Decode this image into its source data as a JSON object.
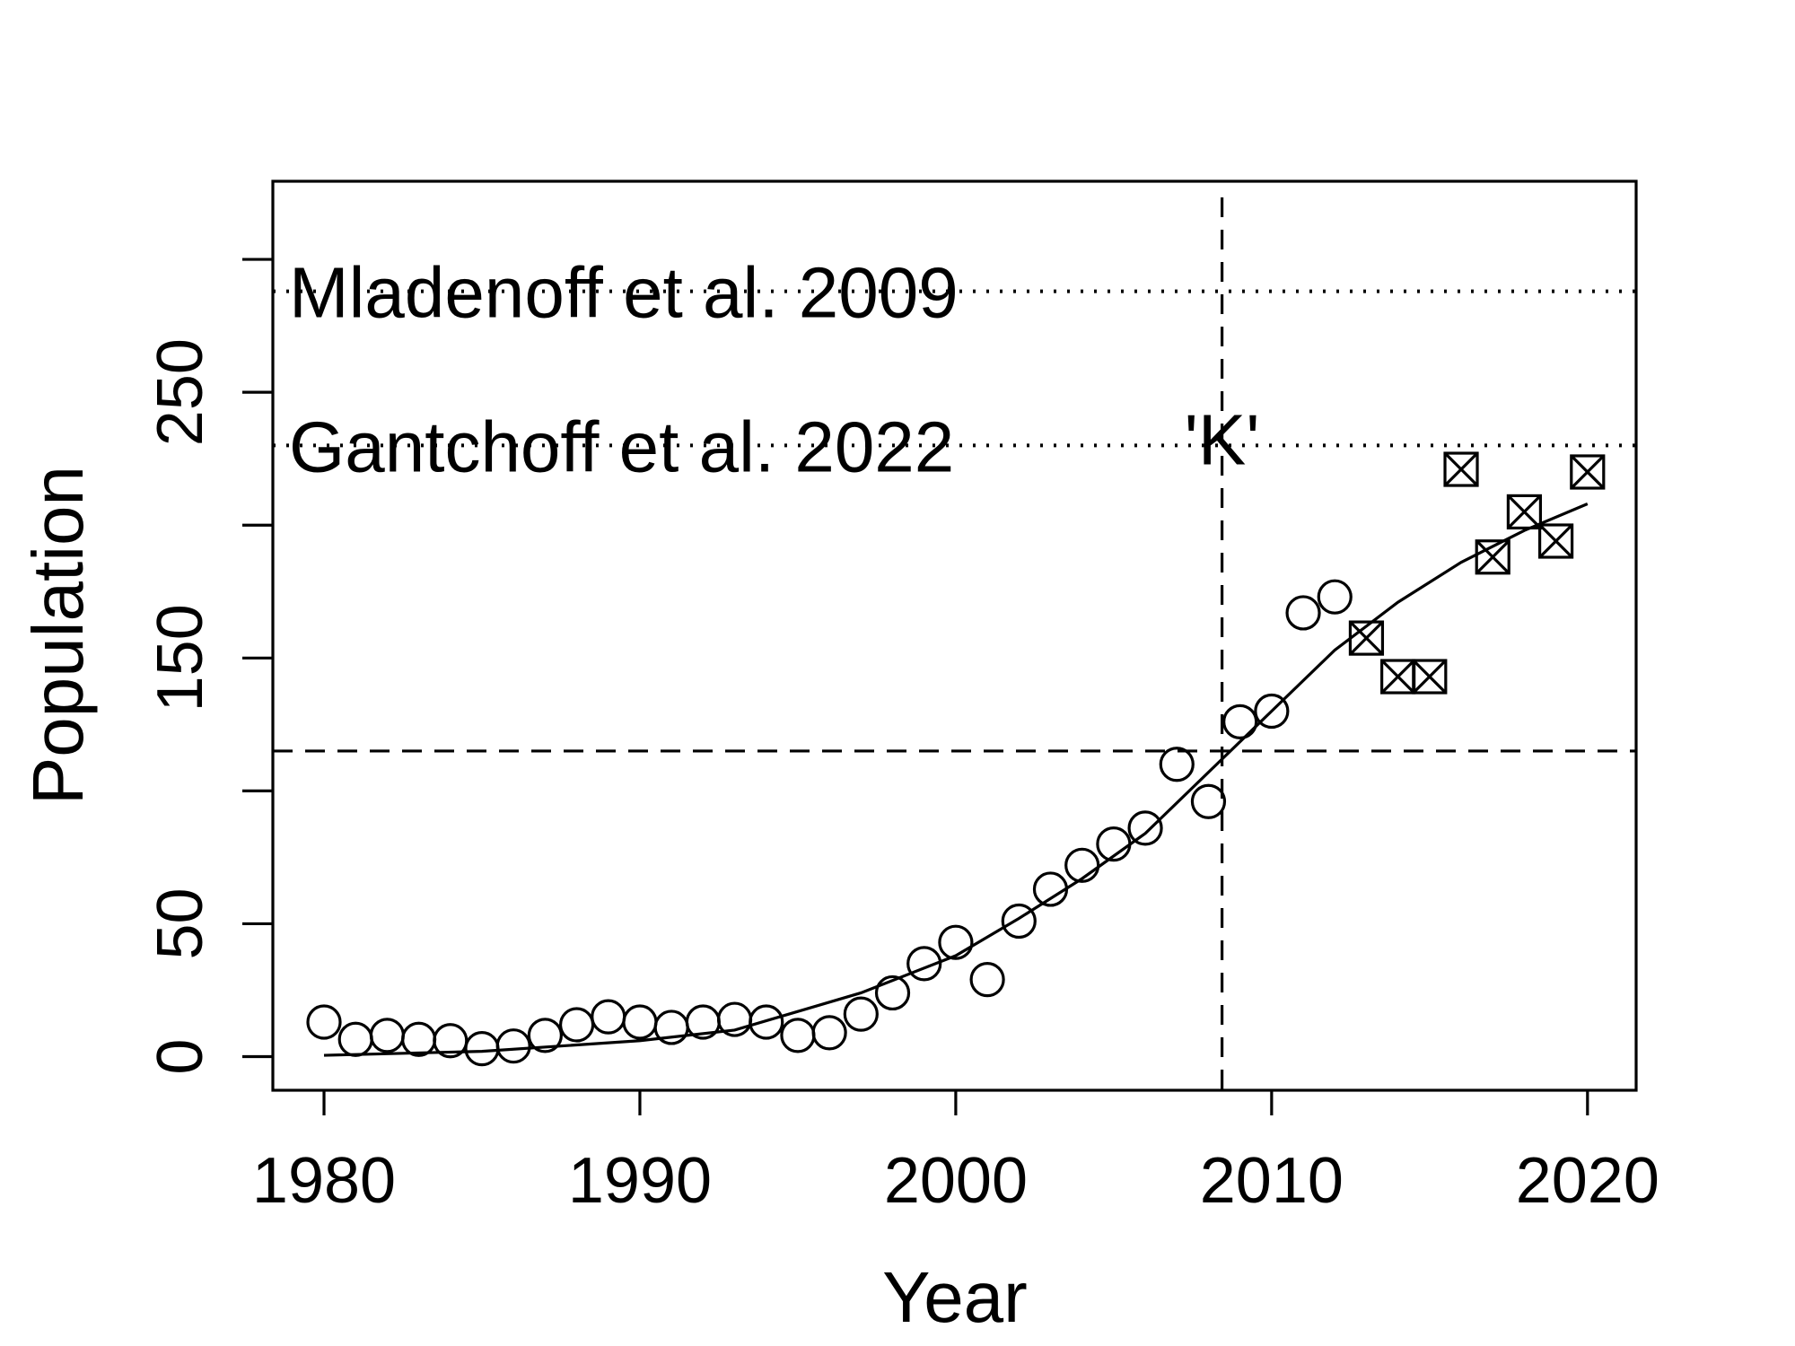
{
  "chart_data": {
    "type": "scatter",
    "xlabel": "Year",
    "ylabel": "Population",
    "xlim": [
      1978.38,
      2021.54
    ],
    "ylim": [
      -12.65,
      329.4
    ],
    "xticks": [
      1980,
      1990,
      2000,
      2010,
      2020
    ],
    "yticks": [
      0,
      50,
      150,
      250
    ],
    "yticks_unlabeled": [
      100,
      200,
      300
    ],
    "color": "#000000",
    "series": [
      {
        "marker": "circle",
        "x": [
          1980,
          1981,
          1982,
          1983,
          1984,
          1985,
          1986,
          1987,
          1988,
          1989,
          1990,
          1991,
          1992,
          1993,
          1994,
          1995,
          1996,
          1997,
          1998,
          1999,
          2000,
          2001,
          2002,
          2003,
          2004,
          2005,
          2006,
          2007,
          2008,
          2009,
          2010,
          2011,
          2012
        ],
        "values": [
          13,
          6.5,
          8,
          6.5,
          6,
          3,
          4,
          8,
          12,
          15,
          13,
          11,
          13,
          14,
          13,
          8,
          9,
          16,
          24,
          35,
          43,
          29,
          51,
          63,
          72,
          80,
          86,
          110,
          96,
          126,
          130,
          167,
          173
        ]
      },
      {
        "marker": "box-x",
        "x": [
          2013,
          2014,
          2015,
          2016,
          2017,
          2018,
          2019,
          2020
        ],
        "values": [
          157.5,
          143,
          143,
          221,
          188,
          205,
          194,
          220
        ]
      }
    ],
    "fit": {
      "x": [
        1980,
        1985,
        1990,
        1993,
        1995,
        1997,
        2000,
        2002,
        2004,
        2006,
        2008,
        2010,
        2012,
        2014,
        2016,
        2018,
        2020
      ],
      "values": [
        0.5,
        2,
        6,
        10,
        17,
        24,
        38,
        52,
        67,
        84,
        107,
        130,
        153,
        171,
        186,
        198,
        208
      ]
    },
    "hlines": [
      {
        "value": 288,
        "style": "dotted",
        "label": "Mladenoff et al. 2009"
      },
      {
        "value": 230,
        "style": "dotted",
        "label": "Gantchoff et al. 2022"
      },
      {
        "value": 115,
        "style": "dashed"
      }
    ],
    "vline": {
      "value": 2008.43,
      "style": "dashed",
      "label": "'K'"
    }
  }
}
